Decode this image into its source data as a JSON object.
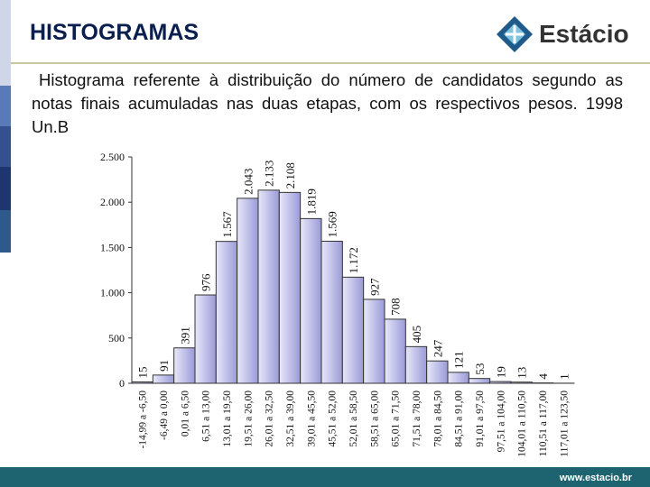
{
  "header": {
    "title": "HISTOGRAMAS"
  },
  "logo": {
    "text": "Estácio"
  },
  "caption": "Histograma referente à distribuição do número de candidatos segundo as notas finais acumuladas nas duas etapas, com os respectivos  pesos. 1998 Un.B",
  "footer": {
    "url": "www.estacio.br"
  },
  "chart_data": {
    "type": "bar",
    "categories": [
      "-14,99 a -6,50",
      "-6,49 a 0,00",
      "0,01 a 6,50",
      "6,51 a 13,00",
      "13,01 a 19,50",
      "19,51 a 26,00",
      "26,01 a 32,50",
      "32,51 a 39,00",
      "39,01 a 45,50",
      "45,51 a 52,00",
      "52,01 a 58,50",
      "58,51 a 65,00",
      "65,01 a 71,50",
      "71,51 a 78,00",
      "78,01 a 84,50",
      "84,51 a 91,00",
      "91,01 a 97,50",
      "97,51 a 104,00",
      "104,01 a 110,50",
      "110,51 a 117,00",
      "117,01 a 123,50"
    ],
    "values": [
      15,
      91,
      391,
      976,
      1567,
      2043,
      2133,
      2108,
      1819,
      1569,
      1172,
      927,
      708,
      405,
      247,
      121,
      53,
      19,
      13,
      4,
      1
    ],
    "value_labels": [
      "15",
      "91",
      "391",
      "976",
      "1.567",
      "2.043",
      "2.133",
      "2.108",
      "1.819",
      "1.569",
      "1.172",
      "927",
      "708",
      "405",
      "247",
      "121",
      "53",
      "19",
      "13",
      "4",
      "1"
    ],
    "color": "#9a9ad8",
    "ylim": [
      0,
      2500
    ],
    "yticks": [
      0,
      500,
      {
        "value": 1000,
        "label": "1.000"
      },
      {
        "value": 1500,
        "label": "1.500"
      },
      {
        "value": 2000,
        "label": "2.000"
      },
      {
        "value": 2500,
        "label": "2.500"
      }
    ],
    "grid": false
  }
}
